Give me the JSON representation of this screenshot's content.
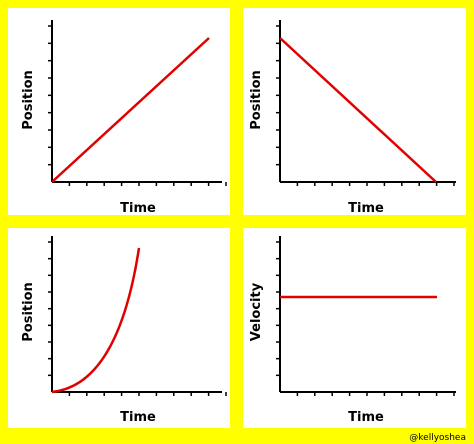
{
  "panels": [
    {
      "y_label": "Position",
      "x_label": "Time"
    },
    {
      "y_label": "Position",
      "x_label": "Time"
    },
    {
      "y_label": "Position",
      "x_label": "Time"
    },
    {
      "y_label": "Velocity",
      "x_label": "Time"
    }
  ],
  "credit": "@kellyoshea"
}
